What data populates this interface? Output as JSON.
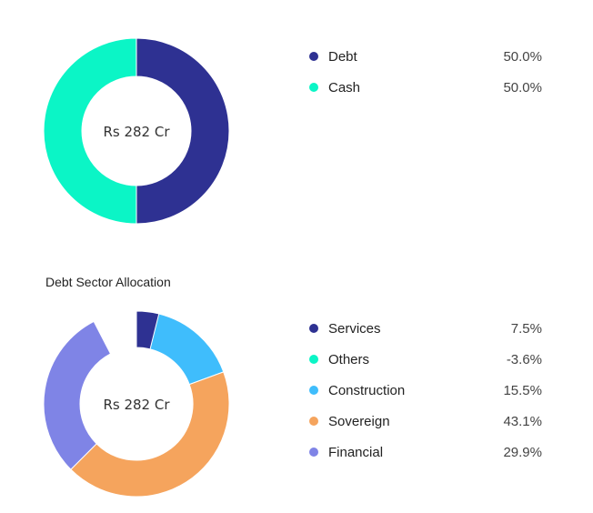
{
  "chart_data": [
    {
      "type": "pie",
      "center_label": "Rs 282 Cr",
      "series": [
        {
          "name": "Debt",
          "value": 50.0,
          "display": "50.0%",
          "color": "#2e3192"
        },
        {
          "name": "Cash",
          "value": 50.0,
          "display": "50.0%",
          "color": "#0bf5c6"
        }
      ]
    },
    {
      "type": "pie",
      "title": "Debt Sector Allocation",
      "center_label": "Rs 282 Cr",
      "series": [
        {
          "name": "Services",
          "value": 7.5,
          "display": "7.5%",
          "color": "#2e3192"
        },
        {
          "name": "Others",
          "value": -3.6,
          "display": "-3.6%",
          "color": "#0bf5c6"
        },
        {
          "name": "Construction",
          "value": 15.5,
          "display": "15.5%",
          "color": "#3fbdfc"
        },
        {
          "name": "Sovereign",
          "value": 43.1,
          "display": "43.1%",
          "color": "#f5a45d"
        },
        {
          "name": "Financial",
          "value": 29.9,
          "display": "29.9%",
          "color": "#7f84e6"
        }
      ]
    }
  ]
}
